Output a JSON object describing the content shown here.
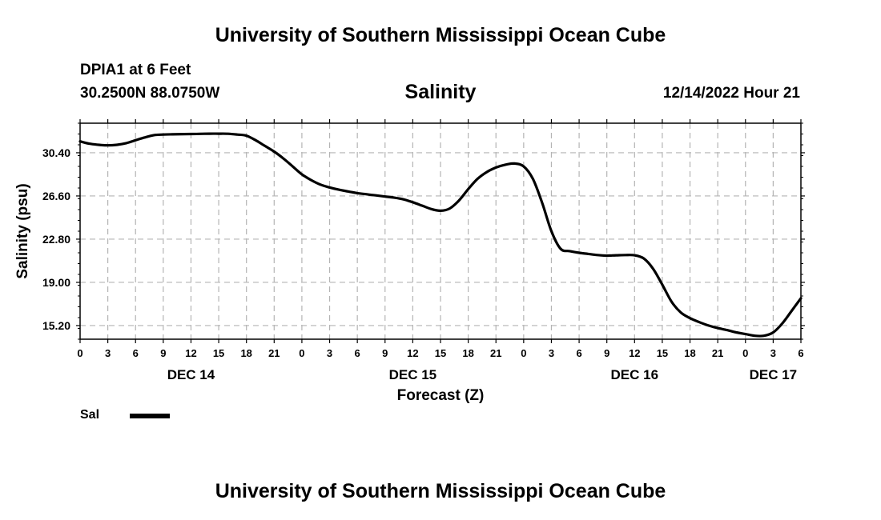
{
  "header": {
    "title": "University of Southern Mississippi Ocean Cube",
    "station": "DPIA1 at 6 Feet",
    "coordinates": "30.2500N  88.0750W",
    "datetime": "12/14/2022 Hour 21"
  },
  "footer": {
    "title": "University of Southern Mississippi Ocean Cube"
  },
  "chart_data": {
    "type": "line",
    "title": "Salinity",
    "xlabel": "Forecast (Z)",
    "ylabel": "Salinity (psu)",
    "x_unit": "hours since Dec 14 00Z",
    "xlim": [
      0,
      78
    ],
    "ylim": [
      14.0,
      33.0
    ],
    "grid": true,
    "yticks": [
      {
        "value": 30.4,
        "label": "30.40"
      },
      {
        "value": 26.6,
        "label": "26.60"
      },
      {
        "value": 22.8,
        "label": "22.80"
      },
      {
        "value": 19.0,
        "label": "19.00"
      },
      {
        "value": 15.2,
        "label": "15.20"
      }
    ],
    "xticks": [
      {
        "value": 0,
        "label": "0"
      },
      {
        "value": 3,
        "label": "3"
      },
      {
        "value": 6,
        "label": "6"
      },
      {
        "value": 9,
        "label": "9"
      },
      {
        "value": 12,
        "label": "12"
      },
      {
        "value": 15,
        "label": "15"
      },
      {
        "value": 18,
        "label": "18"
      },
      {
        "value": 21,
        "label": "21"
      },
      {
        "value": 24,
        "label": "0"
      },
      {
        "value": 27,
        "label": "3"
      },
      {
        "value": 30,
        "label": "6"
      },
      {
        "value": 33,
        "label": "9"
      },
      {
        "value": 36,
        "label": "12"
      },
      {
        "value": 39,
        "label": "15"
      },
      {
        "value": 42,
        "label": "18"
      },
      {
        "value": 45,
        "label": "21"
      },
      {
        "value": 48,
        "label": "0"
      },
      {
        "value": 51,
        "label": "3"
      },
      {
        "value": 54,
        "label": "6"
      },
      {
        "value": 57,
        "label": "9"
      },
      {
        "value": 60,
        "label": "12"
      },
      {
        "value": 63,
        "label": "15"
      },
      {
        "value": 66,
        "label": "18"
      },
      {
        "value": 69,
        "label": "21"
      },
      {
        "value": 72,
        "label": "0"
      },
      {
        "value": 75,
        "label": "3"
      },
      {
        "value": 78,
        "label": "6"
      }
    ],
    "day_labels": [
      {
        "value": 12,
        "label": "DEC 14"
      },
      {
        "value": 36,
        "label": "DEC 15"
      },
      {
        "value": 60,
        "label": "DEC 16"
      },
      {
        "value": 75,
        "label": "DEC 17"
      }
    ],
    "series": [
      {
        "name": "Sal",
        "color": "#000000",
        "x": [
          0,
          1,
          2,
          3,
          4,
          5,
          6,
          7,
          8,
          9,
          10,
          12,
          14,
          15,
          16,
          17,
          18,
          19,
          20,
          21,
          22,
          23,
          24,
          25,
          26,
          27,
          28,
          29,
          30,
          31,
          32,
          33,
          34,
          35,
          36,
          37,
          38,
          39,
          40,
          41,
          42,
          43,
          44,
          45,
          46,
          47,
          48,
          49,
          50,
          51,
          52,
          53,
          54,
          55,
          56,
          57,
          58,
          59,
          60,
          61,
          62,
          63,
          64,
          65,
          66,
          67,
          68,
          69,
          70,
          71,
          72,
          73,
          74,
          75,
          76,
          77,
          78
        ],
        "values": [
          31.4,
          31.2,
          31.1,
          31.05,
          31.1,
          31.25,
          31.5,
          31.75,
          31.95,
          32.0,
          32.02,
          32.05,
          32.08,
          32.08,
          32.07,
          32.0,
          31.9,
          31.5,
          31.0,
          30.5,
          29.9,
          29.2,
          28.5,
          28.0,
          27.6,
          27.35,
          27.15,
          27.0,
          26.85,
          26.75,
          26.65,
          26.55,
          26.45,
          26.3,
          26.05,
          25.75,
          25.45,
          25.3,
          25.5,
          26.2,
          27.2,
          28.1,
          28.7,
          29.1,
          29.35,
          29.45,
          29.2,
          28.1,
          26.0,
          23.5,
          21.95,
          21.75,
          21.6,
          21.5,
          21.4,
          21.35,
          21.38,
          21.4,
          21.38,
          21.1,
          20.2,
          18.8,
          17.3,
          16.35,
          15.85,
          15.5,
          15.2,
          14.98,
          14.8,
          14.6,
          14.45,
          14.3,
          14.3,
          14.6,
          15.4,
          16.5,
          17.6
        ]
      }
    ],
    "legend": [
      {
        "label": "Sal",
        "position": "bottom-left"
      }
    ]
  }
}
